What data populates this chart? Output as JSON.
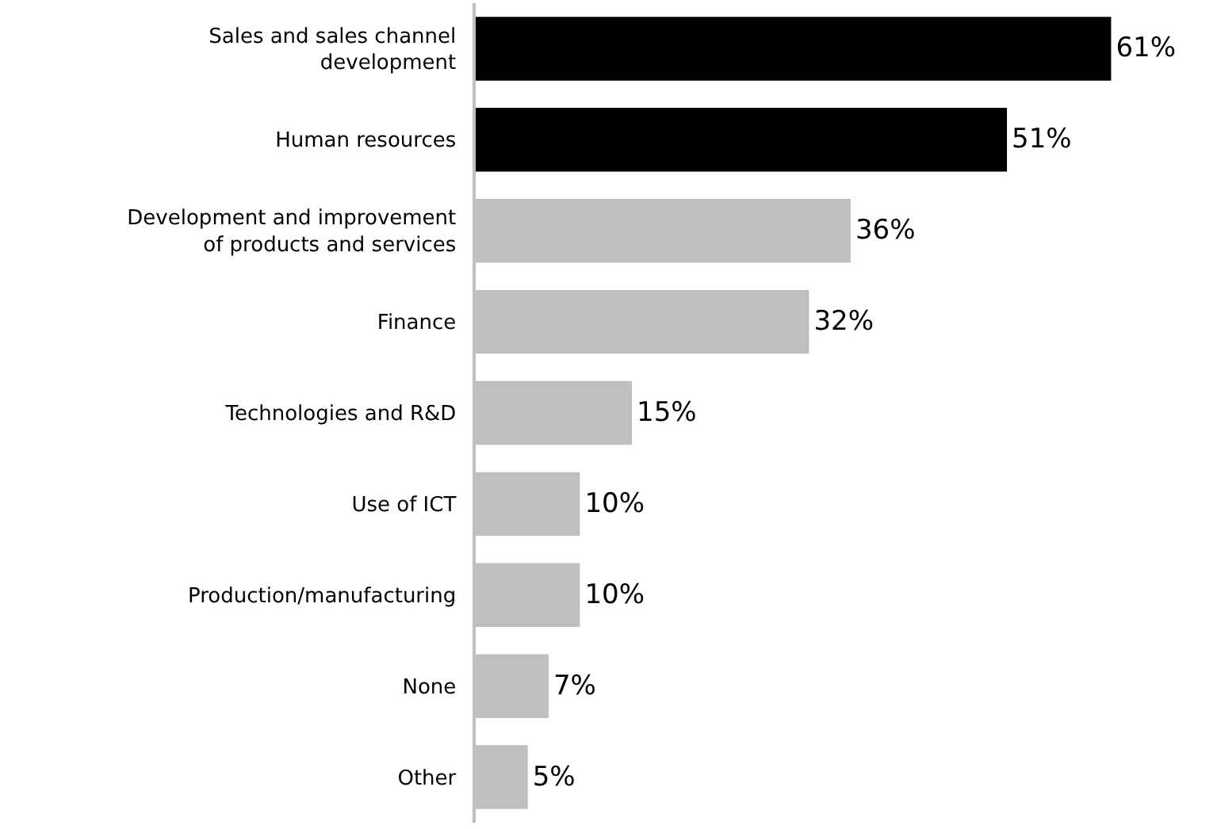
{
  "chart_data": {
    "type": "bar",
    "orientation": "horizontal",
    "categories": [
      "Sales and sales channel development",
      "Human resources",
      "Development and improvement of products and services",
      "Finance",
      "Technologies and R&D",
      "Use of ICT",
      "Production/manufacturing",
      "None",
      "Other"
    ],
    "values": [
      61,
      51,
      36,
      32,
      15,
      10,
      10,
      7,
      5
    ],
    "colors": [
      "#000000",
      "#000000",
      "#bfbfbf",
      "#bfbfbf",
      "#bfbfbf",
      "#bfbfbf",
      "#bfbfbf",
      "#bfbfbf",
      "#bfbfbf"
    ],
    "value_labels": [
      "61%",
      "51%",
      "36%",
      "32%",
      "15%",
      "10%",
      "10%",
      "7%",
      "5%"
    ],
    "tick_labels": "y"
  }
}
